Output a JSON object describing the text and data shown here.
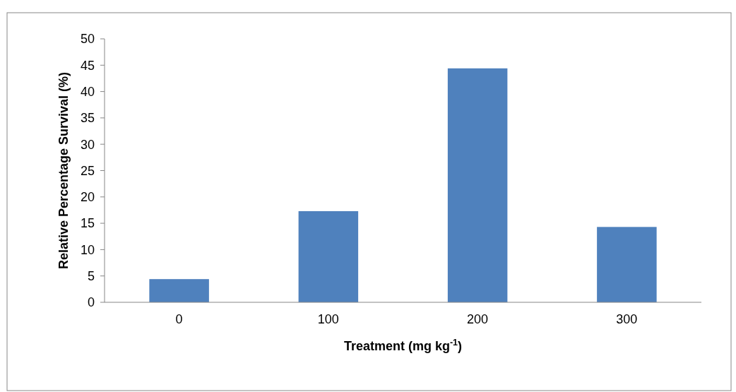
{
  "chart_data": {
    "type": "bar",
    "xlabel": "Treatment (mg kg$^{-1}$)",
    "ylabel": "Relative Percentage Survival (%)",
    "categories": [
      "0",
      "100",
      "200",
      "300"
    ],
    "values": [
      4.4,
      17.3,
      44.4,
      14.3
    ],
    "color": "#4f81bd",
    "ylim": [
      0,
      50
    ],
    "yticks": [
      0,
      5,
      10,
      15,
      20,
      25,
      30,
      35,
      40,
      45,
      50
    ]
  }
}
